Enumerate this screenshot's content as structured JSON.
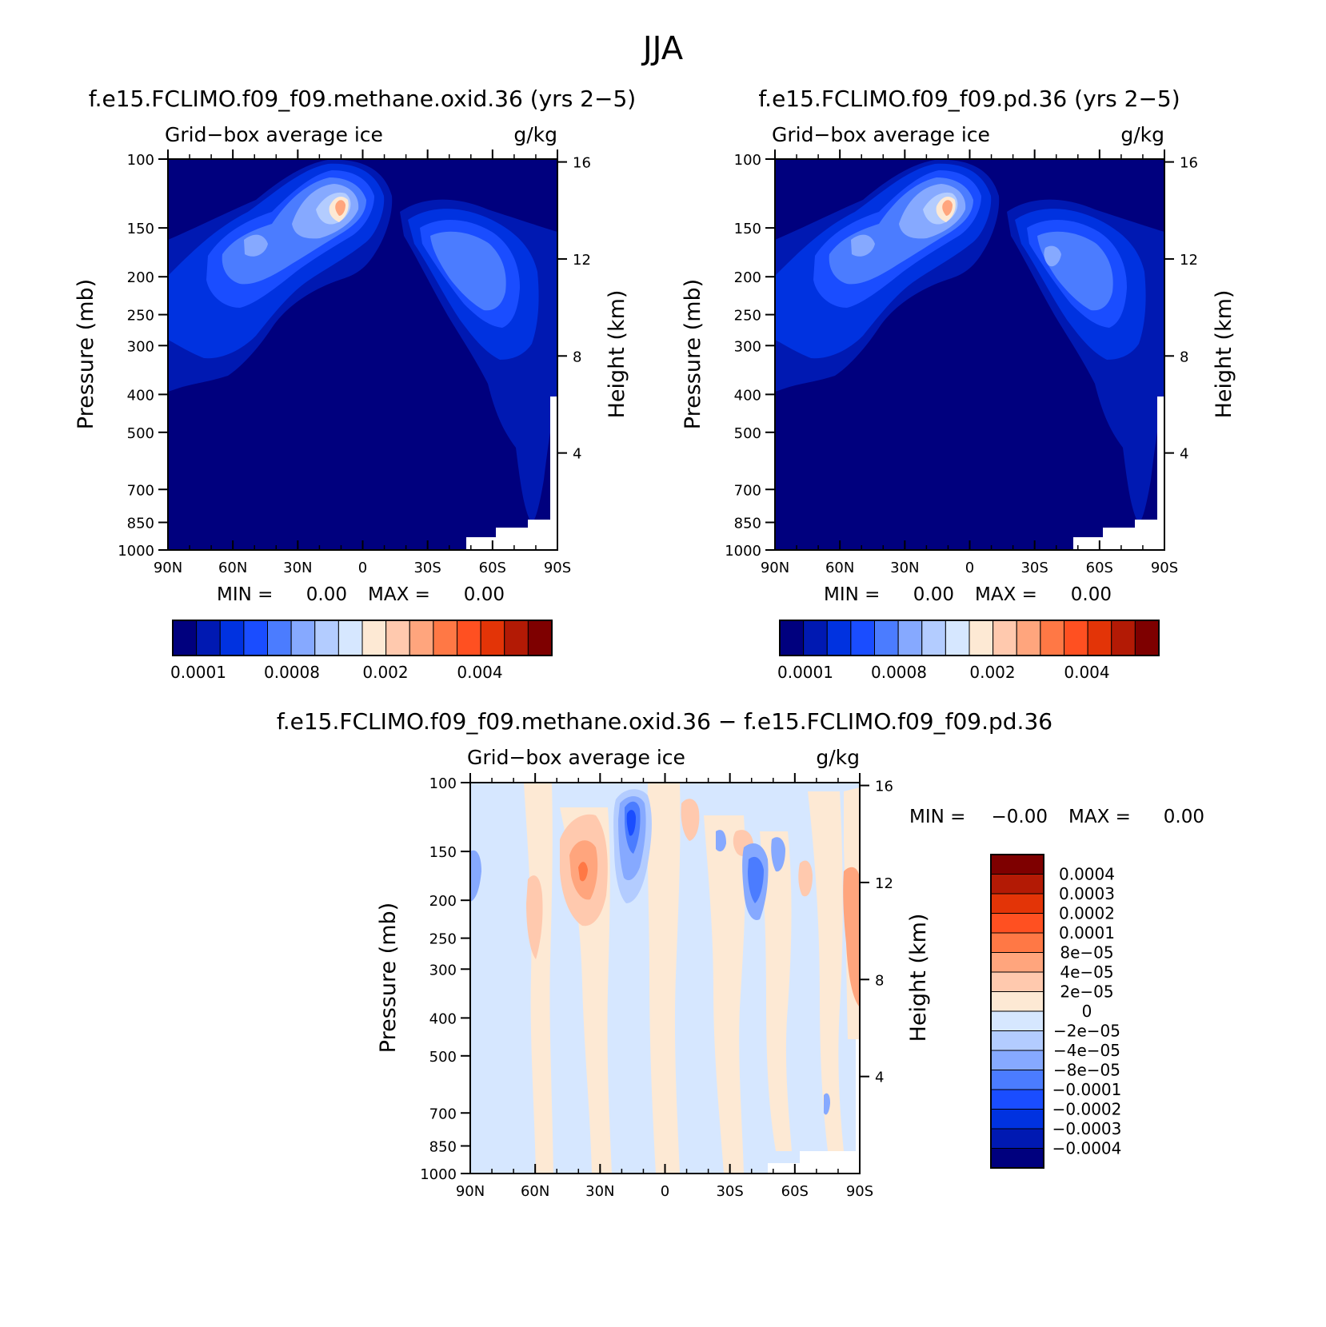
{
  "figure": {
    "title": "JJA"
  },
  "colors": {
    "seq": [
      "#00007e",
      "#0019b2",
      "#0032e0",
      "#1a4dff",
      "#4b7cff",
      "#86a9ff",
      "#b3ccff",
      "#d6e7ff",
      "#fde9d4",
      "#ffc9ae",
      "#ffa57d",
      "#ff7845",
      "#ff5021",
      "#e33407",
      "#b31a05",
      "#7e0000"
    ],
    "div": [
      "#00007e",
      "#0019b2",
      "#0032e0",
      "#1a4dff",
      "#4b7cff",
      "#86a9ff",
      "#b3ccff",
      "#d6e7ff",
      "#fde9d4",
      "#ffc9ae",
      "#ffa57d",
      "#ff7845",
      "#ff5021",
      "#e33407",
      "#b31a05",
      "#7e0000"
    ]
  },
  "chart_data": [
    {
      "type": "heatmap",
      "title": "f.e15.FCLIMO.f09_f09.methane.oxid.36 (yrs 2−5)",
      "subtitle_left": "Grid−box average ice",
      "subtitle_right": "g/kg",
      "xlabel": "",
      "ylabel": "Pressure (mb)",
      "ylabel_right": "Height (km)",
      "x_ticks": [
        "90N",
        "60N",
        "30N",
        "0",
        "30S",
        "60S",
        "90S"
      ],
      "y_ticks": [
        "100",
        "150",
        "200",
        "250",
        "300",
        "400",
        "500",
        "700",
        "850",
        "1000"
      ],
      "y_ticks_right": [
        "16",
        "12",
        "8",
        "4"
      ],
      "min_label": "MIN =",
      "min_value": "0.00",
      "max_label": "MAX =",
      "max_value": "0.00",
      "colorbar": {
        "orientation": "horizontal",
        "labels": [
          "0.0001",
          "0.0008",
          "0.002",
          "0.004"
        ],
        "n_levels": 16
      },
      "x_range": [
        "90N",
        "90S"
      ],
      "y_range_mb": [
        1000,
        100
      ]
    },
    {
      "type": "heatmap",
      "title": "f.e15.FCLIMO.f09_f09.pd.36 (yrs 2−5)",
      "subtitle_left": "Grid−box average ice",
      "subtitle_right": "g/kg",
      "xlabel": "",
      "ylabel": "Pressure (mb)",
      "ylabel_right": "Height (km)",
      "x_ticks": [
        "90N",
        "60N",
        "30N",
        "0",
        "30S",
        "60S",
        "90S"
      ],
      "y_ticks": [
        "100",
        "150",
        "200",
        "250",
        "300",
        "400",
        "500",
        "700",
        "850",
        "1000"
      ],
      "y_ticks_right": [
        "16",
        "12",
        "8",
        "4"
      ],
      "min_label": "MIN =",
      "min_value": "0.00",
      "max_label": "MAX =",
      "max_value": "0.00",
      "colorbar": {
        "orientation": "horizontal",
        "labels": [
          "0.0001",
          "0.0008",
          "0.002",
          "0.004"
        ],
        "n_levels": 16
      },
      "x_range": [
        "90N",
        "90S"
      ],
      "y_range_mb": [
        1000,
        100
      ]
    },
    {
      "type": "heatmap",
      "title": "f.e15.FCLIMO.f09_f09.methane.oxid.36 − f.e15.FCLIMO.f09_f09.pd.36",
      "subtitle_left": "Grid−box average ice",
      "subtitle_right": "g/kg",
      "xlabel": "",
      "ylabel": "Pressure (mb)",
      "ylabel_right": "Height (km)",
      "x_ticks": [
        "90N",
        "60N",
        "30N",
        "0",
        "30S",
        "60S",
        "90S"
      ],
      "y_ticks": [
        "100",
        "150",
        "200",
        "250",
        "300",
        "400",
        "500",
        "700",
        "850",
        "1000"
      ],
      "y_ticks_right": [
        "16",
        "12",
        "8",
        "4"
      ],
      "min_label": "MIN =",
      "min_value": "−0.00",
      "max_label": "MAX =",
      "max_value": "0.00",
      "colorbar": {
        "orientation": "vertical",
        "labels": [
          "0.0004",
          "0.0003",
          "0.0002",
          "0.0001",
          "8e−05",
          "4e−05",
          "2e−05",
          "0",
          "−2e−05",
          "−4e−05",
          "−8e−05",
          "−0.0001",
          "−0.0002",
          "−0.0003",
          "−0.0004"
        ],
        "n_levels": 16
      },
      "x_range": [
        "90N",
        "90S"
      ],
      "y_range_mb": [
        1000,
        100
      ]
    }
  ]
}
